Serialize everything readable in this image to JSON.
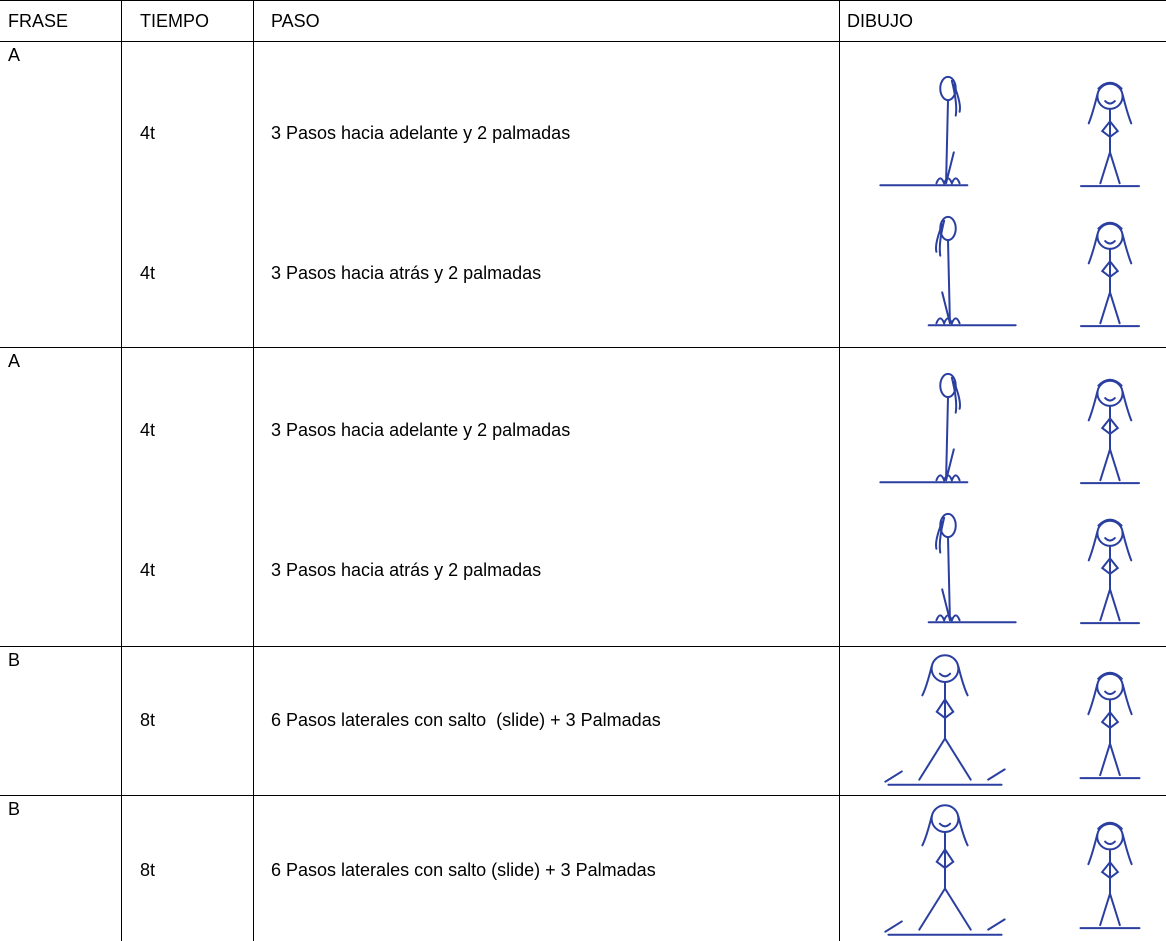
{
  "table": {
    "header": [
      "FRASE",
      "TIEMPO",
      "PASO",
      "DIBUJO"
    ],
    "rows": [
      {
        "frase": "A",
        "steps": [
          {
            "tiempo": "4t",
            "paso": "3 Pasos hacia adelante y 2 palmadas"
          },
          {
            "tiempo": "4t",
            "paso": "3 Pasos hacia atrás y 2 palmadas"
          }
        ]
      },
      {
        "frase": "A",
        "steps": [
          {
            "tiempo": "4t",
            "paso": "3 Pasos hacia adelante y 2 palmadas"
          },
          {
            "tiempo": "4t",
            "paso": "3 Pasos hacia atrás y 2 palmadas"
          }
        ]
      },
      {
        "frase": "B",
        "steps": [
          {
            "tiempo": "8t",
            "paso": "6 Pasos laterales con salto  (slide) + 3 Palmadas"
          }
        ]
      },
      {
        "frase": "B",
        "steps": [
          {
            "tiempo": "8t",
            "paso": "6 Pasos laterales con salto (slide) + 3 Palmadas"
          }
        ]
      }
    ]
  }
}
